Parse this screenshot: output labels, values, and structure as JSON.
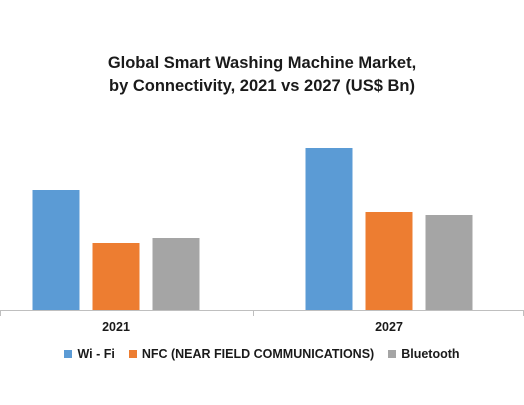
{
  "chart_data": {
    "type": "bar",
    "title_lines": [
      "Global Smart Washing Machine Market,",
      "by Connectivity, 2021 vs 2027 (US$ Bn)"
    ],
    "categories": [
      "2021",
      "2027"
    ],
    "series": [
      {
        "name": "Wi - Fi",
        "color": "#5B9BD5",
        "values": [
          120,
          162
        ]
      },
      {
        "name": "NFC (NEAR FIELD COMMUNICATIONS)",
        "color": "#ED7D31",
        "values": [
          67,
          98
        ]
      },
      {
        "name": "Bluetooth",
        "color": "#A5A5A5",
        "values": [
          72,
          95
        ]
      }
    ],
    "ylim": [
      0,
      175
    ],
    "grid": false,
    "legend_position": "bottom"
  }
}
